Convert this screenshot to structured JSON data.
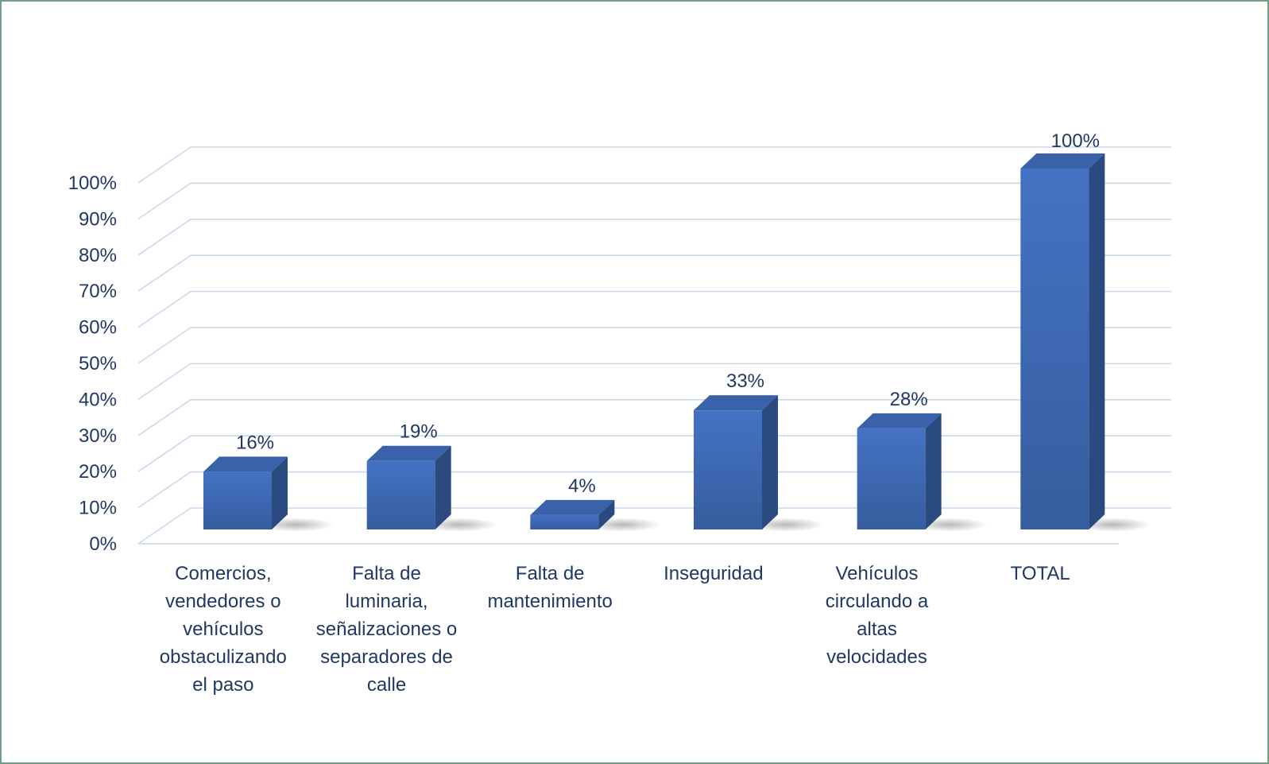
{
  "chart_data": {
    "type": "bar",
    "style": "3d-column",
    "title": "",
    "xlabel": "",
    "ylabel": "",
    "ylim": [
      0,
      1
    ],
    "ytick_values": [
      0,
      0.1,
      0.2,
      0.3,
      0.4,
      0.5,
      0.6,
      0.7,
      0.8,
      0.9,
      1.0
    ],
    "ytick_labels": [
      "0%",
      "10%",
      "20%",
      "30%",
      "40%",
      "50%",
      "60%",
      "70%",
      "80%",
      "90%",
      "100%"
    ],
    "grid": true,
    "legend": "none",
    "categories": [
      [
        "Comercios,",
        "vendedores o",
        "vehículos",
        "obstaculizando",
        "el paso"
      ],
      [
        "Falta de",
        "luminaria,",
        "señalizaciones o",
        "separadores de",
        "calle"
      ],
      [
        "Falta de",
        "mantenimiento"
      ],
      [
        "Inseguridad"
      ],
      [
        "Vehículos",
        "circulando a",
        "altas",
        "velocidades"
      ],
      [
        "TOTAL"
      ]
    ],
    "values": [
      0.16,
      0.19,
      0.04,
      0.33,
      0.28,
      1.0
    ],
    "data_labels": [
      "16%",
      "19%",
      "4%",
      "33%",
      "28%",
      "100%"
    ],
    "colors": {
      "bar_front": "#4472c4",
      "bar_front_dark": "#365d9e",
      "bar_top": "#3a62ab",
      "bar_side": "#2b4a80",
      "text": "#1f3864",
      "grid": "#c9d9ec",
      "frame": "#6e9f86"
    }
  }
}
